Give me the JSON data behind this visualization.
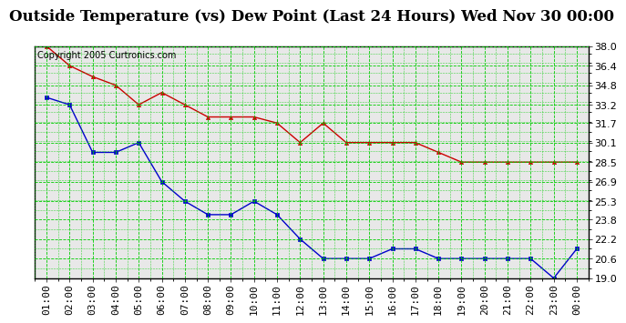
{
  "title": "Outside Temperature (vs) Dew Point (Last 24 Hours) Wed Nov 30 00:00",
  "copyright": "Copyright 2005 Curtronics.com",
  "x_labels": [
    "01:00",
    "02:00",
    "03:00",
    "04:00",
    "05:00",
    "06:00",
    "07:00",
    "08:00",
    "09:00",
    "10:00",
    "11:00",
    "12:00",
    "13:00",
    "14:00",
    "15:00",
    "16:00",
    "17:00",
    "18:00",
    "19:00",
    "20:00",
    "21:00",
    "22:00",
    "23:00",
    "00:00"
  ],
  "temp_data": [
    38.0,
    36.4,
    35.5,
    34.8,
    33.2,
    34.2,
    33.2,
    32.2,
    32.2,
    32.2,
    31.7,
    30.1,
    31.7,
    30.1,
    30.1,
    30.1,
    30.1,
    29.3,
    28.5,
    28.5,
    28.5,
    28.5,
    28.5,
    28.5
  ],
  "dew_data": [
    33.8,
    33.2,
    29.3,
    29.3,
    30.1,
    26.9,
    25.3,
    24.2,
    24.2,
    25.3,
    24.2,
    22.2,
    20.6,
    20.6,
    20.6,
    21.4,
    21.4,
    20.6,
    20.6,
    20.6,
    20.6,
    20.6,
    19.0,
    21.4
  ],
  "temp_color": "#cc0000",
  "dew_color": "#0000cc",
  "bg_color": "#ffffff",
  "plot_bg_color": "#e8e8e8",
  "grid_color": "#00cc00",
  "border_color": "#000000",
  "ylim": [
    19.0,
    38.0
  ],
  "yticks": [
    19.0,
    20.6,
    22.2,
    23.8,
    25.3,
    26.9,
    28.5,
    30.1,
    31.7,
    33.2,
    34.8,
    36.4,
    38.0
  ],
  "title_fontsize": 12,
  "tick_fontsize": 8,
  "copyright_fontsize": 7
}
